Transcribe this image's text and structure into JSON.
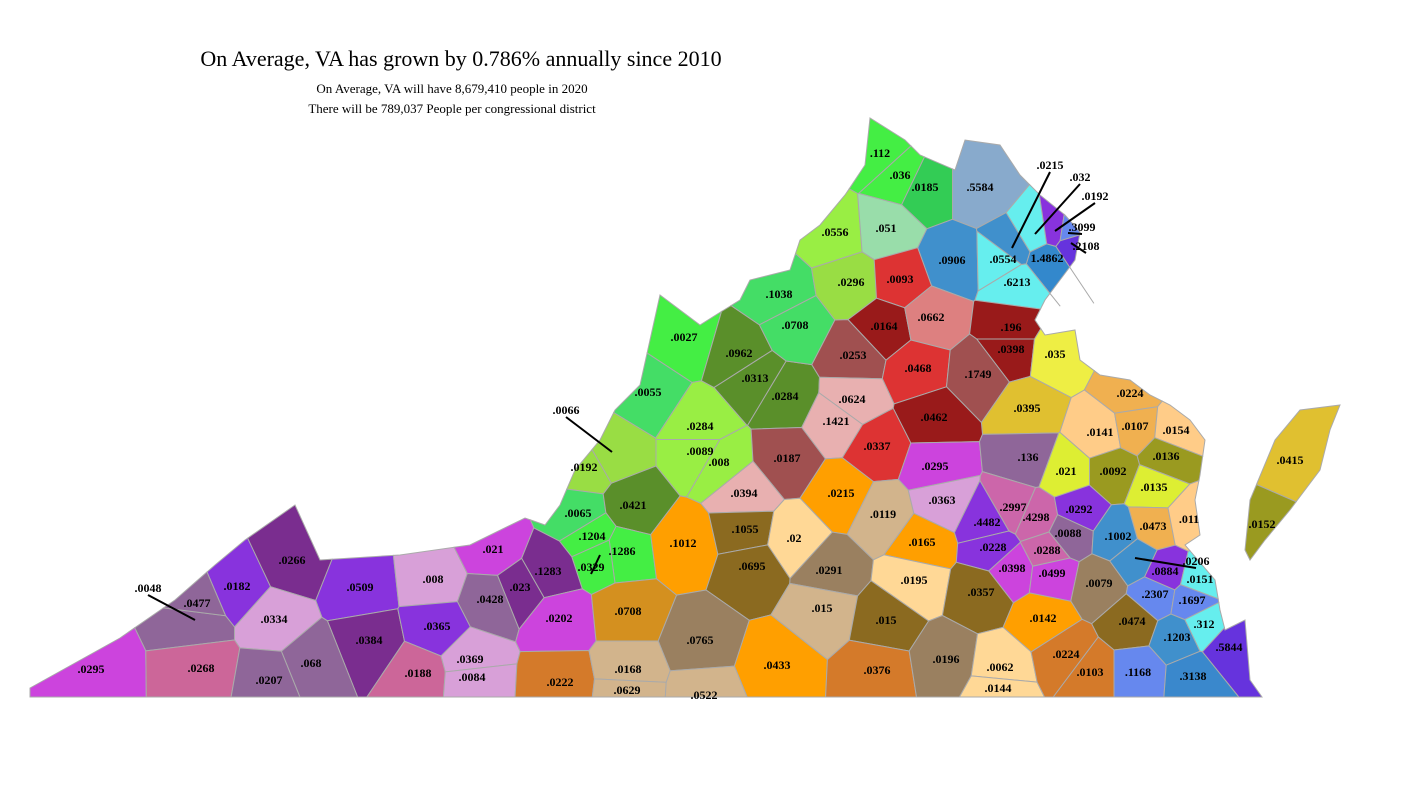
{
  "header": {
    "title": "On Average, VA has grown by 0.786% annually since 2010",
    "lines": [
      "On Average,  VA will have 8,679,410 people in 2020",
      "There will be  789,037  People per congressional district"
    ]
  },
  "regions": [
    {
      "label": ".112",
      "color": "#44ee44"
    },
    {
      "label": ".036",
      "color": "#44ee44"
    },
    {
      "label": ".0185",
      "color": "#33cc55"
    },
    {
      "label": ".5584",
      "color": "#88aacc"
    },
    {
      "label": ".0556",
      "color": "#99ee44"
    },
    {
      "label": ".051",
      "color": "#99ddaa"
    },
    {
      "label": ".0906",
      "color": "#4090cc"
    },
    {
      "label": ".0554",
      "color": "#66eeee"
    },
    {
      "label": "1.4862",
      "color": "#3388cc"
    },
    {
      "label": ".6213",
      "color": "#66eeee"
    },
    {
      "label": ".0215",
      "color": "#4090cc"
    },
    {
      "label": ".032",
      "color": "#66eeee"
    },
    {
      "label": ".0192",
      "color": "#8833dd"
    },
    {
      "label": ".3099",
      "color": "#6688ee"
    },
    {
      "label": ".2108",
      "color": "#6633dd"
    },
    {
      "label": ".0027",
      "color": "#44ee44"
    },
    {
      "label": ".0962",
      "color": "#5a8f2a"
    },
    {
      "label": ".0313",
      "color": "#5a8f2a"
    },
    {
      "label": ".0284",
      "color": "#5a8f2a"
    },
    {
      "label": ".1038",
      "color": "#44dd66"
    },
    {
      "label": ".0708",
      "color": "#44dd66"
    },
    {
      "label": ".0296",
      "color": "#99dd44"
    },
    {
      "label": ".0093",
      "color": "#dd3333"
    },
    {
      "label": ".0164",
      "color": "#991a1a"
    },
    {
      "label": ".0662",
      "color": "#dd8080"
    },
    {
      "label": ".196",
      "color": "#991a1a"
    },
    {
      "label": ".0398",
      "color": "#991a1a"
    },
    {
      "label": ".0253",
      "color": "#a05050"
    },
    {
      "label": ".0468",
      "color": "#dd3333"
    },
    {
      "label": ".1749",
      "color": "#a05050"
    },
    {
      "label": ".035",
      "color": "#eeee44"
    },
    {
      "label": ".0224",
      "color": "#f0b050"
    },
    {
      "label": ".0395",
      "color": "#e0c030"
    },
    {
      "label": ".0624",
      "color": "#e8b0b0"
    },
    {
      "label": ".1421",
      "color": "#e8b0b0"
    },
    {
      "label": ".0462",
      "color": "#991a1a"
    },
    {
      "label": ".0337",
      "color": "#dd3333"
    },
    {
      "label": ".0055",
      "color": "#44dd66"
    },
    {
      "label": ".0066",
      "color": "#99dd44"
    },
    {
      "label": ".0192",
      "color": "#99dd44"
    },
    {
      "label": ".0284",
      "color": "#99ee44"
    },
    {
      "label": ".0089",
      "color": "#99ee44"
    },
    {
      "label": ".008",
      "color": "#99ee44"
    },
    {
      "label": ".0187",
      "color": "#a05050"
    },
    {
      "label": ".0394",
      "color": "#e8b0b0"
    },
    {
      "label": ".0215",
      "color": "#ff9f00"
    },
    {
      "label": ".0295",
      "color": "#cc44dd"
    },
    {
      "label": ".136",
      "color": "#8f6699"
    },
    {
      "label": ".0141",
      "color": "#ffcc88"
    },
    {
      "label": ".0107",
      "color": "#f0b050"
    },
    {
      "label": ".0154",
      "color": "#ffcc88"
    },
    {
      "label": ".0136",
      "color": "#9a9a20"
    },
    {
      "label": ".021",
      "color": "#ddee33"
    },
    {
      "label": ".0092",
      "color": "#9a9a20"
    },
    {
      "label": ".0135",
      "color": "#ddee33"
    },
    {
      "label": ".0415",
      "color": "#e0c030"
    },
    {
      "label": ".0152",
      "color": "#9a9a20"
    },
    {
      "label": ".0065",
      "color": "#44dd66"
    },
    {
      "label": ".0421",
      "color": "#5a8f2a"
    },
    {
      "label": ".1204",
      "color": "#44ee44"
    },
    {
      "label": ".1286",
      "color": "#44ee44"
    },
    {
      "label": ".0329",
      "color": "#44ee44"
    },
    {
      "label": ".1012",
      "color": "#ff9f00"
    },
    {
      "label": ".1055",
      "color": "#8b6a20"
    },
    {
      "label": ".02",
      "color": "#ffd896"
    },
    {
      "label": ".0119",
      "color": "#d2b48c"
    },
    {
      "label": ".0363",
      "color": "#d8a0d8"
    },
    {
      "label": ".2997",
      "color": "#cc66aa"
    },
    {
      "label": ".4482",
      "color": "#8833dd"
    },
    {
      "label": ".4298",
      "color": "#cc66aa"
    },
    {
      "label": ".0292",
      "color": "#8833dd"
    },
    {
      "label": ".0473",
      "color": "#f0b050"
    },
    {
      "label": ".011",
      "color": "#ffcc88"
    },
    {
      "label": ".0088",
      "color": "#8f6699"
    },
    {
      "label": ".1002",
      "color": "#4090cc"
    },
    {
      "label": ".0165",
      "color": "#ff9f00"
    },
    {
      "label": ".0228",
      "color": "#8833dd"
    },
    {
      "label": ".0288",
      "color": "#cc66aa"
    },
    {
      "label": ".0398",
      "color": "#cc44dd"
    },
    {
      "label": ".0499",
      "color": "#cc44dd"
    },
    {
      "label": ".0695",
      "color": "#8b6a20"
    },
    {
      "label": ".0291",
      "color": "#9a8060"
    },
    {
      "label": ".0195",
      "color": "#ffd896"
    },
    {
      "label": ".0357",
      "color": "#8b6a20"
    },
    {
      "label": ".0079",
      "color": "#9a8060"
    },
    {
      "label": ".0884",
      "color": "#8833dd"
    },
    {
      "label": ".0151",
      "color": "#66eeee"
    },
    {
      "label": ".2307",
      "color": "#6688ee"
    },
    {
      "label": ".1697",
      "color": "#6688ee"
    },
    {
      "label": ".0206",
      "color": "#4090cc"
    },
    {
      "label": ".0266",
      "color": "#7a2d8f"
    },
    {
      "label": ".0182",
      "color": "#8833dd"
    },
    {
      "label": ".0509",
      "color": "#8833dd"
    },
    {
      "label": ".008",
      "color": "#d8a0d8"
    },
    {
      "label": ".021",
      "color": "#cc44dd"
    },
    {
      "label": ".1283",
      "color": "#7a2d8f"
    },
    {
      "label": ".023",
      "color": "#7a2d8f"
    },
    {
      "label": ".0428",
      "color": "#8f6699"
    },
    {
      "label": ".0048",
      "color": "#8f6699"
    },
    {
      "label": ".0477",
      "color": "#8f6699"
    },
    {
      "label": ".0334",
      "color": "#d8a0d8"
    },
    {
      "label": ".0384",
      "color": "#7a2d8f"
    },
    {
      "label": ".0365",
      "color": "#8833dd"
    },
    {
      "label": ".0202",
      "color": "#cc44dd"
    },
    {
      "label": ".0708",
      "color": "#d4901f"
    },
    {
      "label": ".0765",
      "color": "#9a8060"
    },
    {
      "label": ".015",
      "color": "#d2b48c"
    },
    {
      "label": ".015",
      "color": "#8b6a20"
    },
    {
      "label": ".0142",
      "color": "#ff9f00"
    },
    {
      "label": ".0474",
      "color": "#8b6a20"
    },
    {
      "label": ".312",
      "color": "#66eeee"
    },
    {
      "label": ".1203",
      "color": "#4090cc"
    },
    {
      "label": ".5844",
      "color": "#6633dd"
    },
    {
      "label": ".0295",
      "color": "#cc44dd"
    },
    {
      "label": ".0268",
      "color": "#cc6699"
    },
    {
      "label": ".068",
      "color": "#8f6699"
    },
    {
      "label": ".0207",
      "color": "#8f6699"
    },
    {
      "label": ".0188",
      "color": "#cc6699"
    },
    {
      "label": ".0369",
      "color": "#d8a0d8"
    },
    {
      "label": ".0084",
      "color": "#d8a0d8"
    },
    {
      "label": ".0222",
      "color": "#d47a2a"
    },
    {
      "label": ".0168",
      "color": "#d2b48c"
    },
    {
      "label": ".0629",
      "color": "#d2b48c"
    },
    {
      "label": ".0433",
      "color": "#ff9f00"
    },
    {
      "label": ".0522",
      "color": "#d2b48c"
    },
    {
      "label": ".0376",
      "color": "#d47a2a"
    },
    {
      "label": ".0196",
      "color": "#9a8060"
    },
    {
      "label": ".0062",
      "color": "#ffd896"
    },
    {
      "label": ".0144",
      "color": "#ffd896"
    },
    {
      "label": ".0224",
      "color": "#d47a2a"
    },
    {
      "label": ".0103",
      "color": "#d47a2a"
    },
    {
      "label": ".1168",
      "color": "#6688ee"
    },
    {
      "label": ".3138",
      "color": "#3a88cc"
    }
  ]
}
